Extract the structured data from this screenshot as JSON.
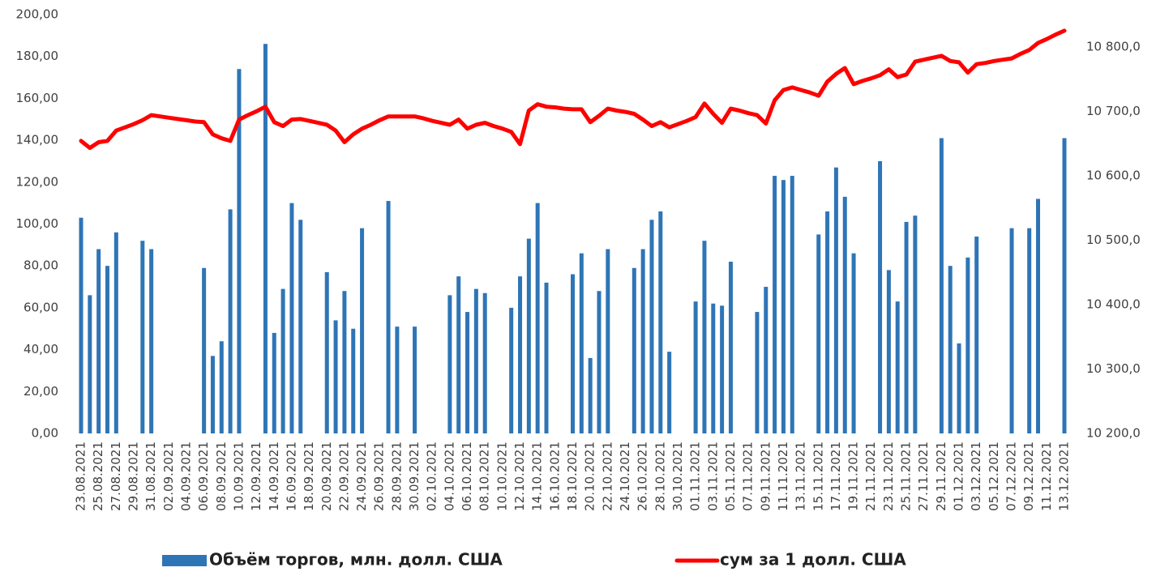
{
  "chart_data": {
    "type": "bar_line",
    "categories": [
      "23.08.2021",
      null,
      "25.08.2021",
      null,
      "27.08.2021",
      null,
      "29.08.2021",
      null,
      "31.08.2021",
      null,
      "02.09.2021",
      null,
      "04.09.2021",
      null,
      "06.09.2021",
      null,
      "08.09.2021",
      null,
      "10.09.2021",
      null,
      "12.09.2021",
      null,
      "14.09.2021",
      null,
      "16.09.2021",
      null,
      "18.09.2021",
      null,
      "20.09.2021",
      null,
      "22.09.2021",
      null,
      "24.09.2021",
      null,
      "26.09.2021",
      null,
      "28.09.2021",
      null,
      "30.09.2021",
      null,
      "02.10.2021",
      null,
      "04.10.2021",
      null,
      "06.10.2021",
      null,
      "08.10.2021",
      null,
      "10.10.2021",
      null,
      "12.10.2021",
      null,
      "14.10.2021",
      null,
      "16.10.2021",
      null,
      "18.10.2021",
      null,
      "20.10.2021",
      null,
      "22.10.2021",
      null,
      "24.10.2021",
      null,
      "26.10.2021",
      null,
      "28.10.2021",
      null,
      "30.10.2021",
      null,
      "01.11.2021",
      null,
      "03.11.2021",
      null,
      "05.11.2021",
      null,
      "07.11.2021",
      null,
      "09.11.2021",
      null,
      "11.11.2021",
      null,
      "13.11.2021",
      null,
      "15.11.2021",
      null,
      "17.11.2021",
      null,
      "19.11.2021",
      null,
      "21.11.2021",
      null,
      "23.11.2021",
      null,
      "25.11.2021",
      null,
      "27.11.2021",
      null,
      "29.11.2021",
      null,
      "01.12.2021",
      null,
      "03.12.2021",
      null,
      "05.12.2021",
      null,
      "07.12.2021",
      null,
      "09.12.2021",
      null,
      "11.12.2021",
      null,
      "13.12.2021"
    ],
    "series": [
      {
        "name": "Объём торгов, млн. долл. США",
        "type": "bar",
        "color": "#2e75b6",
        "values": [
          103,
          66,
          88,
          80,
          96,
          null,
          null,
          92,
          88,
          null,
          null,
          null,
          null,
          null,
          79,
          37,
          44,
          107,
          174,
          null,
          null,
          186,
          48,
          69,
          110,
          102,
          null,
          null,
          77,
          54,
          68,
          50,
          98,
          null,
          null,
          111,
          51,
          null,
          51,
          null,
          null,
          null,
          66,
          75,
          58,
          69,
          67,
          null,
          null,
          60,
          75,
          93,
          110,
          72,
          null,
          null,
          76,
          86,
          36,
          68,
          88,
          null,
          null,
          79,
          88,
          102,
          106,
          39,
          null,
          null,
          63,
          92,
          62,
          61,
          82,
          null,
          null,
          58,
          70,
          123,
          121,
          123,
          null,
          null,
          95,
          106,
          127,
          113,
          86,
          null,
          null,
          130,
          78,
          63,
          101,
          104,
          null,
          null,
          141,
          80,
          43,
          84,
          94,
          null,
          null,
          null,
          98,
          null,
          98,
          112,
          null,
          null,
          141
        ]
      },
      {
        "name": "сум за 1 долл. США",
        "type": "line",
        "axis": "y2",
        "color": "#ff0000",
        "values": [
          10654,
          10643,
          10652,
          10654,
          10670,
          10675,
          10680,
          10686,
          10694,
          10692,
          10690,
          10688,
          10686,
          10684,
          10683,
          10664,
          10658,
          10654,
          10687,
          10694,
          10700,
          10707,
          10683,
          10677,
          10687,
          10688,
          10685,
          10682,
          10679,
          10670,
          10652,
          10664,
          10673,
          10679,
          10686,
          10692,
          10692,
          10692,
          10692,
          10689,
          10685,
          10682,
          10679,
          10687,
          10673,
          10679,
          10682,
          10677,
          10673,
          10668,
          10649,
          10701,
          10711,
          10707,
          10706,
          10704,
          10703,
          10703,
          10683,
          10693,
          10704,
          10701,
          10699,
          10696,
          10687,
          10677,
          10683,
          10675,
          10680,
          10685,
          10691,
          10712,
          10696,
          10682,
          10704,
          10701,
          10697,
          10694,
          10681,
          10717,
          10733,
          10737,
          10733,
          10729,
          10724,
          10746,
          10758,
          10767,
          10742,
          10747,
          10751,
          10756,
          10765,
          10753,
          10757,
          10777,
          10780,
          10783,
          10786,
          10778,
          10776,
          10760,
          10773,
          10775,
          10778,
          10780,
          10782,
          10789,
          10795,
          10806,
          10812,
          10819,
          10825
        ]
      }
    ],
    "ylim": [
      0,
      200
    ],
    "yticks": [
      {
        "value": 0,
        "label": "0,00"
      },
      {
        "value": 20,
        "label": "20,00"
      },
      {
        "value": 40,
        "label": "40,00"
      },
      {
        "value": 60,
        "label": "60,00"
      },
      {
        "value": 80,
        "label": "80,00"
      },
      {
        "value": 100,
        "label": "100,00"
      },
      {
        "value": 120,
        "label": "120,00"
      },
      {
        "value": 140,
        "label": "140,00"
      },
      {
        "value": 160,
        "label": "160,00"
      },
      {
        "value": 180,
        "label": "180,00"
      },
      {
        "value": 200,
        "label": "200,00"
      }
    ],
    "y2lim": [
      10200,
      10850
    ],
    "y2ticks": [
      {
        "value": 10200,
        "label": "10 200,0"
      },
      {
        "value": 10300,
        "label": "10 300,0"
      },
      {
        "value": 10400,
        "label": "10 400,0"
      },
      {
        "value": 10500,
        "label": "10 500,0"
      },
      {
        "value": 10600,
        "label": "10 600,0"
      },
      {
        "value": 10700,
        "label": "10 700,0"
      },
      {
        "value": 10800,
        "label": "10 800,0"
      }
    ],
    "grid": false,
    "legend": "bottom"
  }
}
